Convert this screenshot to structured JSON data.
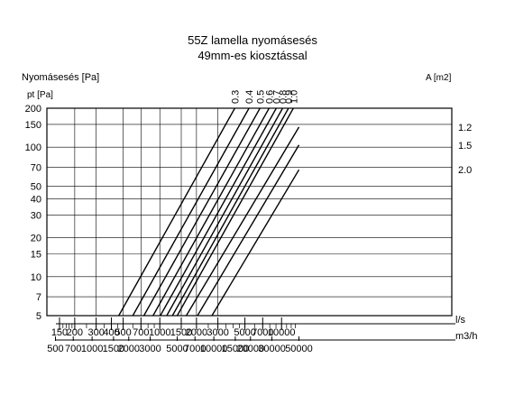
{
  "chart_data": {
    "type": "line",
    "title": "55Z lamella nyomásesés",
    "subtitle": "49mm-es kiosztással",
    "ylabel": "Nyomásesés [Pa]",
    "ylabel_unit": "pt [Pa]",
    "area_label": "A [m2]",
    "x_unit_primary": "l/s",
    "x_unit_secondary": "m3/h",
    "y_scale": "log",
    "x_scale": "log",
    "ylim": [
      5,
      200
    ],
    "xlim_ls": [
      150,
      13900
    ],
    "grid": true,
    "y_ticks": [
      200,
      150,
      100,
      70,
      50,
      40,
      30,
      20,
      15,
      10,
      7,
      5
    ],
    "y_tick_labels": [
      "200",
      "150",
      "100",
      "70",
      "50",
      "40",
      "30",
      "20",
      "15",
      "10",
      "7",
      "5"
    ],
    "x_ticks_ls": [
      150,
      200,
      300,
      400,
      500,
      700,
      1000,
      1500,
      2000,
      3000,
      5000,
      7000,
      10000
    ],
    "x_tick_labels_ls": [
      "150",
      "200",
      "300",
      "400",
      "500",
      "700",
      "1000",
      "1500",
      "2000",
      "3000",
      "5000",
      "7000",
      "10000"
    ],
    "x_ticks_m3h": [
      500,
      700,
      1000,
      1500,
      2000,
      3000,
      5000,
      7000,
      10000,
      15000,
      20000,
      30000,
      50000
    ],
    "x_tick_labels_m3h": [
      "500",
      "700",
      "1000",
      "1500",
      "2000",
      "3000",
      "5000",
      "7000",
      "10000",
      "15000",
      "20000",
      "30000",
      "50000"
    ],
    "series": [
      {
        "name": "0.3",
        "x": [
          460,
          4130
        ],
        "y": [
          5,
          200
        ]
      },
      {
        "name": "0.4",
        "x": [
          600,
          5400
        ],
        "y": [
          5,
          200
        ]
      },
      {
        "name": "0.5",
        "x": [
          740,
          6650
        ],
        "y": [
          5,
          200
        ]
      },
      {
        "name": "0.6",
        "x": [
          880,
          7900
        ],
        "y": [
          5,
          200
        ]
      },
      {
        "name": "0.7",
        "x": [
          1010,
          9050
        ],
        "y": [
          5,
          200
        ]
      },
      {
        "name": "0.8",
        "x": [
          1140,
          10200
        ],
        "y": [
          5,
          200
        ]
      },
      {
        "name": "0.9",
        "x": [
          1270,
          11400
        ],
        "y": [
          5,
          200
        ]
      },
      {
        "name": "1.0",
        "x": [
          1390,
          12500
        ],
        "y": [
          5,
          200
        ]
      },
      {
        "name": "1.2",
        "x": [
          1650,
          13900
        ],
        "y": [
          5,
          143
        ]
      },
      {
        "name": "1.5",
        "x": [
          2040,
          13900
        ],
        "y": [
          5,
          104
        ]
      },
      {
        "name": "2.0",
        "x": [
          2680,
          13900
        ],
        "y": [
          5,
          67
        ]
      }
    ]
  }
}
